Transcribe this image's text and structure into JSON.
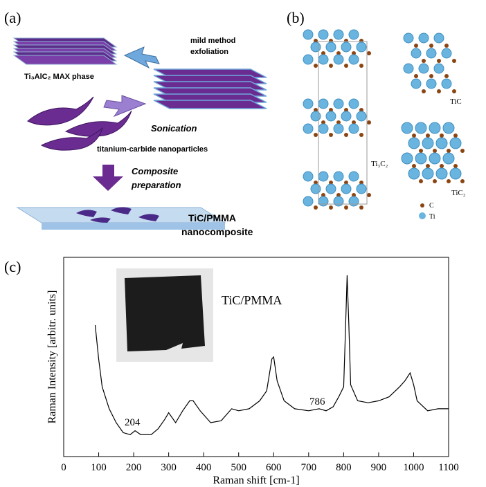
{
  "panel_a": {
    "label": "(a)",
    "max_phase": "Ti₃AlC₂ MAX phase",
    "exfoliation": [
      "mild method",
      "exfoliation"
    ],
    "sonication": "Sonication",
    "nanoparticles": "titanium-carbide nanoparticles",
    "composite": [
      "Composite",
      "preparation"
    ],
    "product": [
      "TiC/PMMA",
      "nanocomposite"
    ]
  },
  "panel_b": {
    "label": "(b)",
    "ti3c2": "Ti₃C₂",
    "tic": "TiC",
    "tic2": "TiC₂",
    "legend_c": "C",
    "legend_ti": "Ti"
  },
  "chart_data": {
    "type": "line",
    "panel_label": "(c)",
    "xlabel": "Raman shift [cm-1]",
    "ylabel": "Raman Intensity [arbitr. units]",
    "annotations": [
      "204",
      "786",
      "TiC/PMMA"
    ],
    "color": "#000000",
    "x": [
      90,
      100,
      110,
      130,
      150,
      170,
      190,
      204,
      220,
      250,
      270,
      290,
      300,
      320,
      340,
      360,
      370,
      390,
      420,
      450,
      480,
      500,
      530,
      560,
      580,
      595,
      600,
      610,
      630,
      660,
      700,
      730,
      750,
      770,
      786,
      800,
      805,
      810,
      815,
      820,
      840,
      870,
      900,
      930,
      960,
      975,
      990,
      1000,
      1010,
      1040,
      1070,
      1100
    ],
    "values": [
      66,
      49,
      35,
      24,
      17,
      12,
      11,
      13,
      11,
      11,
      14,
      19,
      22,
      17,
      23,
      28,
      28,
      23,
      17,
      18,
      24,
      23,
      24,
      28,
      33,
      49,
      50,
      38,
      28,
      24,
      23,
      24,
      23,
      25,
      30,
      35,
      62,
      91,
      66,
      36,
      28,
      27,
      28,
      30,
      35,
      38,
      42,
      36,
      28,
      23,
      24,
      24
    ],
    "xlim": [
      0,
      1100
    ],
    "ylim": [
      0,
      100
    ],
    "xticks": [
      0,
      100,
      200,
      300,
      400,
      500,
      600,
      700,
      800,
      900,
      1000,
      1100
    ]
  }
}
